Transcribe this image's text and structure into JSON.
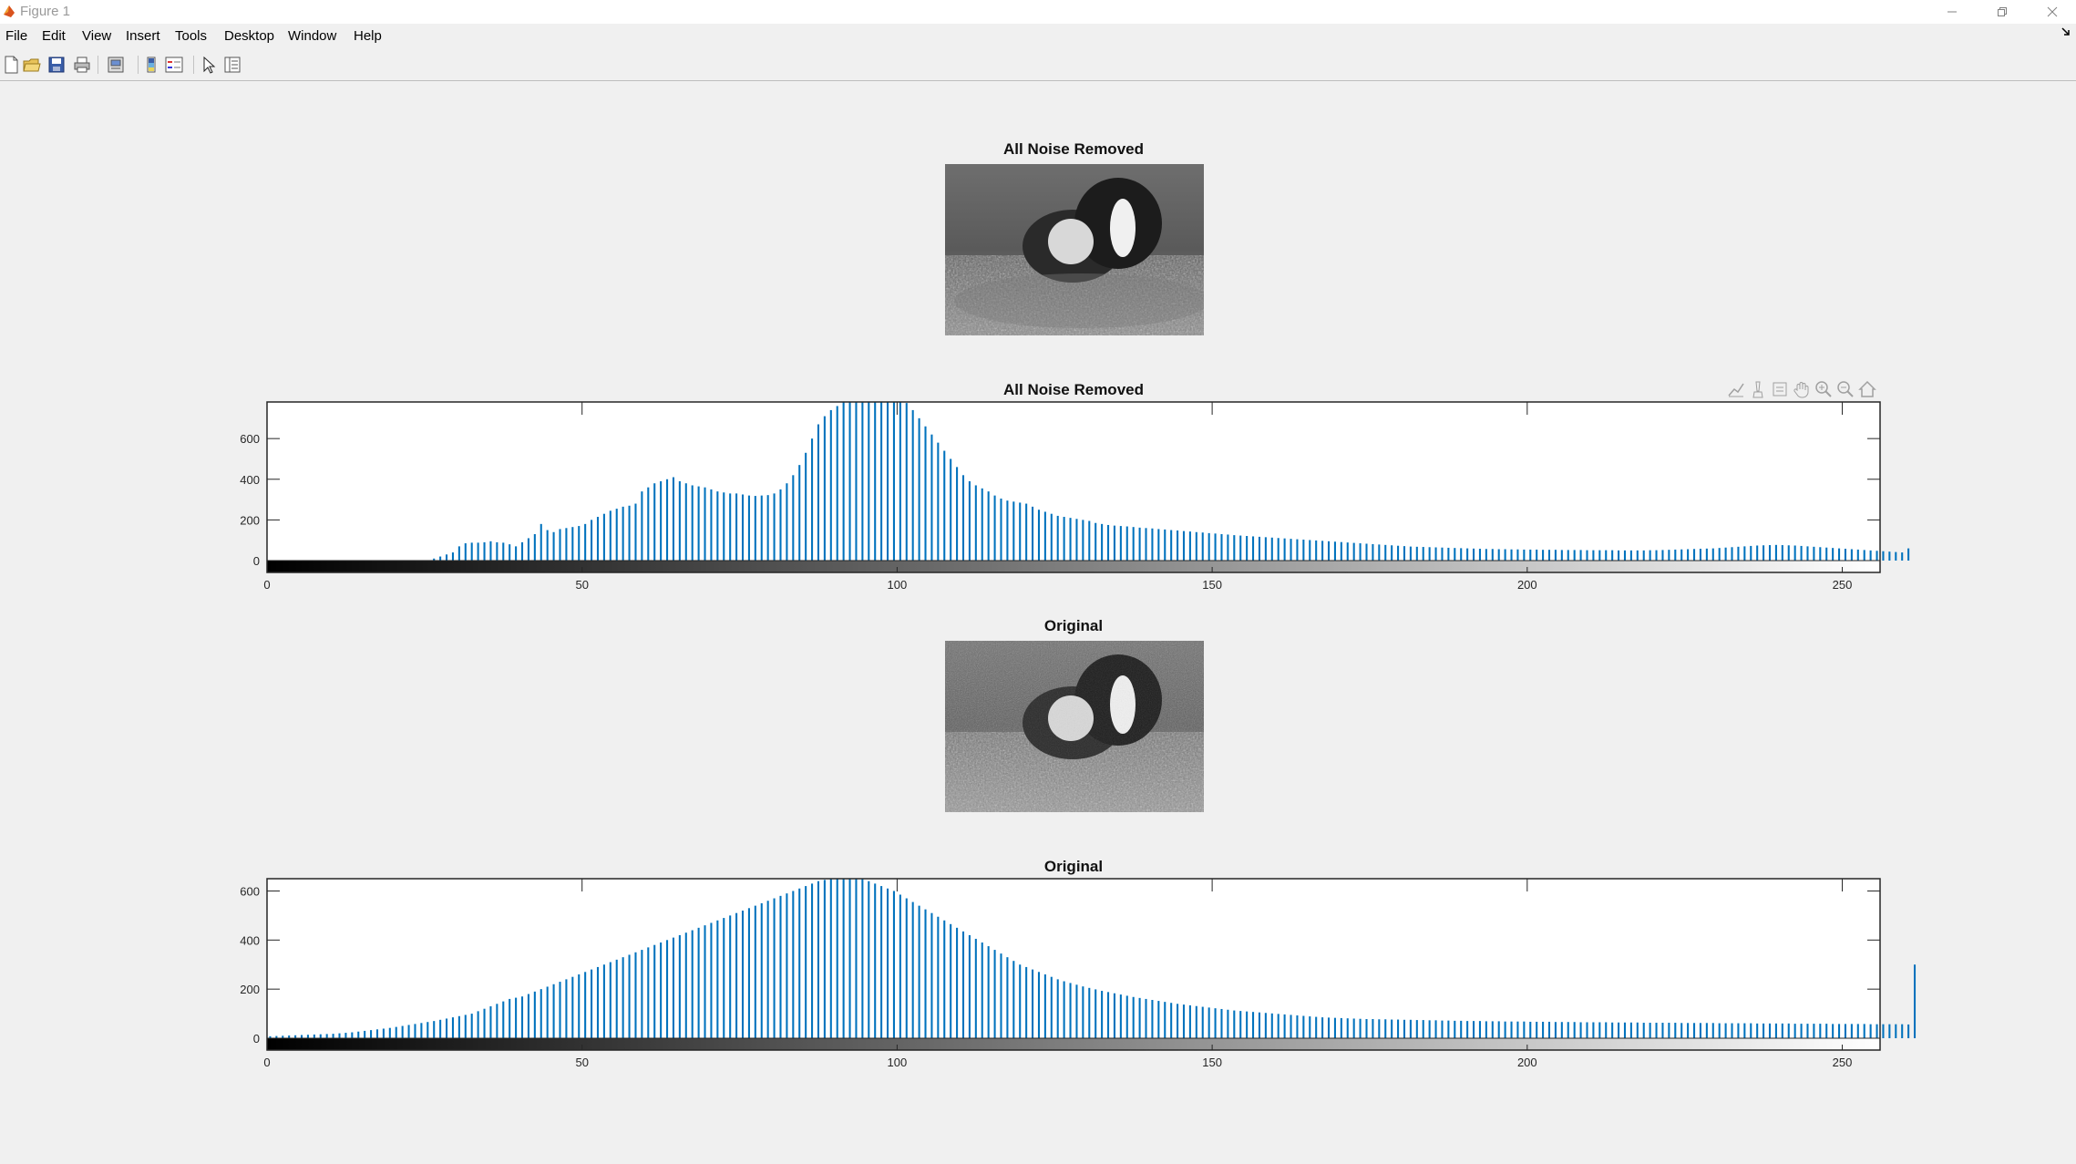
{
  "window": {
    "title": "Figure 1",
    "controls": [
      "minimize",
      "restore",
      "close"
    ]
  },
  "menubar": {
    "items": [
      "File",
      "Edit",
      "View",
      "Insert",
      "Tools",
      "Desktop",
      "Window",
      "Help"
    ]
  },
  "toolbar": {
    "buttons": [
      "new-figure-icon",
      "open-file-icon",
      "save-icon",
      "print-icon",
      "print-preview-icon",
      "colorbar-icon",
      "legend-icon",
      "pointer-icon",
      "property-inspector-icon"
    ]
  },
  "axes_toolbar": {
    "buttons": [
      "data-cursor-icon",
      "brush-icon",
      "export-icon",
      "pan-icon",
      "zoom-in-icon",
      "zoom-out-icon",
      "restore-view-icon"
    ]
  },
  "panels": {
    "image1": {
      "title": "All Noise Removed"
    },
    "hist1": {
      "title": "All Noise Removed"
    },
    "image2": {
      "title": "Original"
    },
    "hist2": {
      "title": "Original"
    }
  },
  "chart_data": [
    {
      "type": "bar",
      "title": "All Noise Removed",
      "xlim": [
        0,
        255
      ],
      "ylim": [
        0,
        780
      ],
      "xticks": [
        0,
        50,
        100,
        150,
        200,
        250
      ],
      "yticks": [
        0,
        200,
        400,
        600
      ],
      "color": "#0072bd",
      "x_step": 1,
      "values": [
        0,
        0,
        0,
        0,
        0,
        0,
        0,
        0,
        0,
        0,
        0,
        0,
        0,
        0,
        0,
        0,
        0,
        0,
        0,
        0,
        0,
        0,
        0,
        0,
        0,
        0,
        10,
        20,
        30,
        40,
        70,
        85,
        88,
        88,
        90,
        95,
        90,
        88,
        80,
        70,
        90,
        110,
        130,
        180,
        150,
        140,
        155,
        160,
        165,
        170,
        180,
        200,
        215,
        230,
        245,
        255,
        265,
        270,
        280,
        340,
        360,
        380,
        390,
        400,
        410,
        390,
        380,
        370,
        365,
        360,
        350,
        340,
        335,
        330,
        330,
        325,
        320,
        318,
        320,
        322,
        330,
        350,
        380,
        420,
        470,
        530,
        600,
        670,
        710,
        740,
        760,
        780,
        780,
        780,
        780,
        780,
        780,
        780,
        780,
        780,
        780,
        775,
        740,
        700,
        660,
        620,
        580,
        540,
        500,
        460,
        420,
        390,
        370,
        355,
        340,
        320,
        305,
        295,
        290,
        285,
        280,
        265,
        250,
        240,
        230,
        220,
        215,
        210,
        205,
        200,
        195,
        185,
        180,
        175,
        172,
        170,
        168,
        165,
        162,
        160,
        158,
        155,
        153,
        150,
        148,
        145,
        143,
        140,
        138,
        135,
        133,
        130,
        128,
        125,
        123,
        121,
        119,
        117,
        115,
        113,
        111,
        109,
        107,
        105,
        103,
        101,
        99,
        97,
        95,
        93,
        91,
        89,
        87,
        85,
        83,
        81,
        79,
        77,
        75,
        73,
        71,
        69,
        68,
        67,
        66,
        65,
        64,
        63,
        62,
        61,
        60,
        59,
        58,
        57,
        57,
        56,
        56,
        55,
        55,
        54,
        54,
        54,
        53,
        53,
        53,
        52,
        52,
        52,
        52,
        51,
        51,
        51,
        51,
        51,
        50,
        50,
        50,
        50,
        50,
        51,
        51,
        52,
        53,
        54,
        55,
        56,
        57,
        58,
        59,
        60,
        62,
        64,
        66,
        68,
        70,
        72,
        74,
        75,
        76,
        77,
        76,
        75,
        74,
        72,
        70,
        68,
        66,
        64,
        62,
        60,
        58,
        56,
        54,
        52,
        50,
        48,
        46,
        44,
        42,
        40,
        60
      ]
    },
    {
      "type": "bar",
      "title": "Original",
      "xlim": [
        0,
        255
      ],
      "ylim": [
        0,
        650
      ],
      "xticks": [
        0,
        50,
        100,
        150,
        200,
        250
      ],
      "yticks": [
        0,
        200,
        400,
        600
      ],
      "color": "#0072bd",
      "x_step": 1,
      "values": [
        8,
        9,
        10,
        11,
        12,
        13,
        14,
        15,
        16,
        17,
        18,
        20,
        22,
        24,
        27,
        30,
        33,
        36,
        39,
        42,
        46,
        50,
        54,
        58,
        62,
        66,
        70,
        75,
        80,
        85,
        90,
        95,
        100,
        110,
        120,
        130,
        140,
        150,
        160,
        165,
        170,
        180,
        190,
        200,
        210,
        220,
        230,
        240,
        250,
        260,
        270,
        280,
        290,
        300,
        310,
        320,
        330,
        340,
        350,
        360,
        370,
        380,
        390,
        400,
        410,
        420,
        430,
        440,
        450,
        460,
        470,
        480,
        490,
        500,
        510,
        520,
        530,
        540,
        550,
        560,
        570,
        580,
        590,
        600,
        610,
        620,
        630,
        640,
        645,
        650,
        650,
        650,
        650,
        650,
        648,
        640,
        630,
        620,
        610,
        600,
        585,
        570,
        555,
        540,
        525,
        510,
        495,
        480,
        465,
        450,
        435,
        420,
        405,
        390,
        375,
        360,
        345,
        330,
        315,
        300,
        290,
        280,
        270,
        260,
        250,
        240,
        232,
        225,
        218,
        211,
        205,
        199,
        193,
        188,
        183,
        178,
        173,
        168,
        164,
        160,
        156,
        152,
        148,
        144,
        140,
        137,
        134,
        131,
        128,
        125,
        122,
        119,
        116,
        113,
        111,
        109,
        107,
        105,
        103,
        101,
        99,
        97,
        95,
        93,
        91,
        89,
        87,
        85,
        84,
        83,
        82,
        81,
        80,
        79,
        78,
        78,
        77,
        77,
        76,
        76,
        75,
        75,
        74,
        74,
        73,
        73,
        72,
        72,
        71,
        71,
        70,
        70,
        70,
        69,
        69,
        69,
        68,
        68,
        68,
        68,
        67,
        67,
        67,
        67,
        66,
        66,
        66,
        66,
        65,
        65,
        65,
        65,
        65,
        64,
        64,
        64,
        64,
        64,
        63,
        63,
        63,
        63,
        63,
        63,
        62,
        62,
        62,
        62,
        62,
        62,
        61,
        61,
        61,
        61,
        61,
        61,
        60,
        60,
        60,
        60,
        60,
        60,
        59,
        59,
        59,
        59,
        59,
        59,
        58,
        58,
        58,
        58,
        58,
        58,
        57,
        57,
        57,
        57,
        57,
        57,
        56,
        300
      ]
    }
  ]
}
